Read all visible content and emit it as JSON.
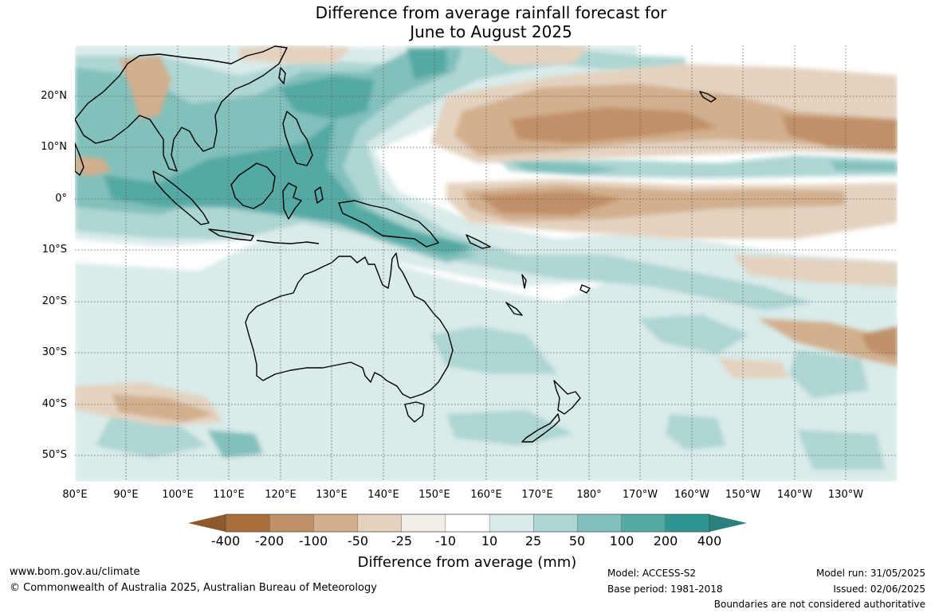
{
  "title_line1": "Difference from average rainfall forecast for",
  "title_line2": "June to August 2025",
  "lat_labels": [
    "20°N",
    "10°N",
    "0°",
    "10°S",
    "20°S",
    "30°S",
    "40°S",
    "50°S"
  ],
  "lon_labels": [
    "80°E",
    "90°E",
    "100°E",
    "110°E",
    "120°E",
    "130°E",
    "140°E",
    "150°E",
    "160°E",
    "170°E",
    "180°",
    "170°W",
    "160°W",
    "150°W",
    "140°W",
    "130°W"
  ],
  "colorbar": {
    "labels": [
      "-400",
      "-200",
      "-100",
      "-50",
      "-25",
      "-10",
      "10",
      "25",
      "50",
      "100",
      "200",
      "400"
    ],
    "title": "Difference from average (mm)",
    "under_color": "#8c5a2b",
    "over_color": "#2b7f7c",
    "colors": [
      "#a86f3c",
      "#c09068",
      "#d2af8d",
      "#e4d2bf",
      "#f2ede6",
      "#ffffff",
      "#d9ebea",
      "#aed6d3",
      "#82c0bc",
      "#55a9a5",
      "#2e9590"
    ]
  },
  "footer": {
    "website": "www.bom.gov.au/climate",
    "copyright": "© Commonwealth of Australia 2025, Australian Bureau of Meteorology",
    "model": "Model: ACCESS-S2",
    "base_period": "Base period: 1981-2018",
    "model_run": "Model run: 31/05/2025",
    "issued": "Issued: 02/06/2025",
    "disclaimer": "Boundaries are not considered authoritative"
  },
  "map_colors": {
    "wet_light": "#d9ebea",
    "wet_mid": "#aed6d3",
    "wet_strong": "#82c0bc",
    "wet_heavy": "#55a9a5",
    "dry_light": "#e4d2bf",
    "dry_mid": "#d2af8d",
    "dry_strong": "#c09068",
    "coast": "#000000",
    "grid": "#555555"
  }
}
